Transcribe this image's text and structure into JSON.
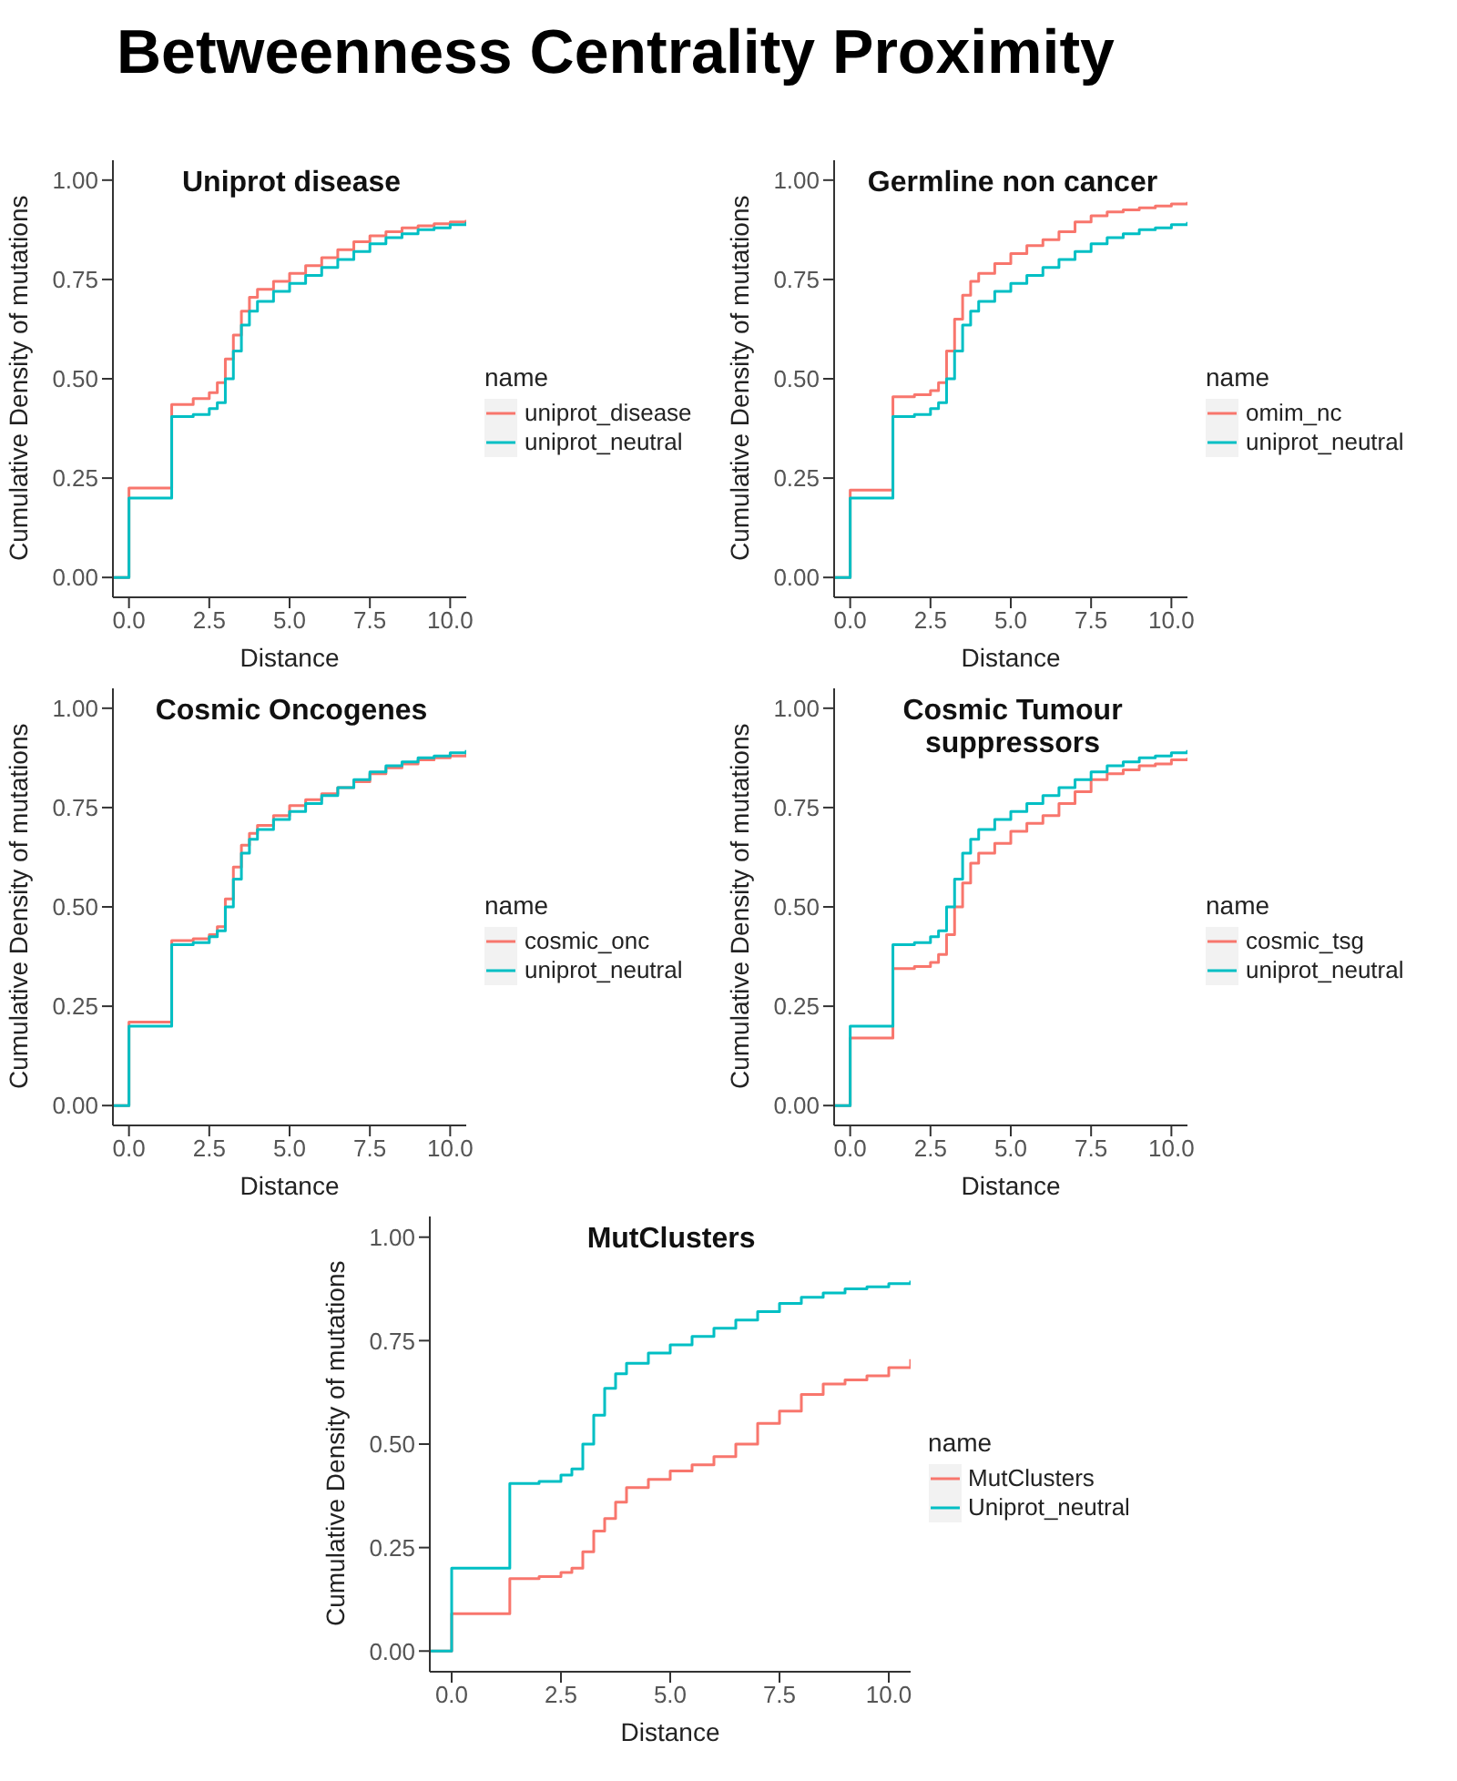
{
  "chart_data": [
    {
      "type": "other",
      "title": "Betweenness Centrality Proximity"
    },
    {
      "type": "step",
      "title": "Uniprot disease",
      "xlabel": "Distance",
      "ylabel": "Cumulative Density of mutations",
      "legend_title": "name",
      "legend": "right",
      "grid": false,
      "x": [
        -0.5,
        0,
        1.33,
        1.5,
        2,
        2.5,
        2.75,
        3,
        3.25,
        3.5,
        3.75,
        4,
        4.5,
        5,
        5.5,
        6,
        6.5,
        7,
        7.5,
        8,
        8.5,
        9,
        9.5,
        10,
        10.5
      ],
      "xlim": [
        -0.5,
        10.5
      ],
      "xticks": [
        {
          "value": 0,
          "label": "0.0"
        },
        {
          "value": 2.5,
          "label": "2.5"
        },
        {
          "value": 5,
          "label": "5.0"
        },
        {
          "value": 7.5,
          "label": "7.5"
        },
        {
          "value": 10,
          "label": "10.0"
        }
      ],
      "ylim": [
        -0.05,
        1.05
      ],
      "yticks": [
        {
          "value": 0,
          "label": "0.00"
        },
        {
          "value": 0.25,
          "label": "0.25"
        },
        {
          "value": 0.5,
          "label": "0.50"
        },
        {
          "value": 0.75,
          "label": "0.75"
        },
        {
          "value": 1,
          "label": "1.00"
        }
      ],
      "series": [
        {
          "name": "uniprot_disease",
          "color": "#f8766d",
          "values": [
            0,
            0.225,
            0.435,
            0.435,
            0.45,
            0.465,
            0.49,
            0.55,
            0.61,
            0.67,
            0.705,
            0.725,
            0.745,
            0.765,
            0.785,
            0.805,
            0.825,
            0.845,
            0.86,
            0.87,
            0.88,
            0.885,
            0.89,
            0.895,
            0.9
          ]
        },
        {
          "name": "uniprot_neutral",
          "color": "#00bfc4",
          "values": [
            0,
            0.2,
            0.405,
            0.405,
            0.41,
            0.425,
            0.44,
            0.5,
            0.57,
            0.635,
            0.67,
            0.695,
            0.72,
            0.74,
            0.76,
            0.78,
            0.8,
            0.82,
            0.84,
            0.855,
            0.865,
            0.875,
            0.88,
            0.888,
            0.895
          ]
        }
      ]
    },
    {
      "type": "step",
      "title": "Germline non cancer",
      "xlabel": "Distance",
      "ylabel": "Cumulative Density of mutations",
      "legend_title": "name",
      "legend": "right",
      "grid": false,
      "x": [
        -0.5,
        0,
        1.33,
        1.5,
        2,
        2.5,
        2.75,
        3,
        3.25,
        3.5,
        3.75,
        4,
        4.5,
        5,
        5.5,
        6,
        6.5,
        7,
        7.5,
        8,
        8.5,
        9,
        9.5,
        10,
        10.5
      ],
      "xlim": [
        -0.5,
        10.5
      ],
      "xticks": [
        {
          "value": 0,
          "label": "0.0"
        },
        {
          "value": 2.5,
          "label": "2.5"
        },
        {
          "value": 5,
          "label": "5.0"
        },
        {
          "value": 7.5,
          "label": "7.5"
        },
        {
          "value": 10,
          "label": "10.0"
        }
      ],
      "ylim": [
        -0.05,
        1.05
      ],
      "yticks": [
        {
          "value": 0,
          "label": "0.00"
        },
        {
          "value": 0.25,
          "label": "0.25"
        },
        {
          "value": 0.5,
          "label": "0.50"
        },
        {
          "value": 0.75,
          "label": "0.75"
        },
        {
          "value": 1,
          "label": "1.00"
        }
      ],
      "series": [
        {
          "name": "omim_nc",
          "color": "#f8766d",
          "values": [
            0,
            0.22,
            0.455,
            0.455,
            0.46,
            0.47,
            0.49,
            0.57,
            0.65,
            0.71,
            0.745,
            0.765,
            0.79,
            0.815,
            0.835,
            0.85,
            0.87,
            0.895,
            0.91,
            0.92,
            0.925,
            0.93,
            0.935,
            0.94,
            0.945
          ]
        },
        {
          "name": "uniprot_neutral",
          "color": "#00bfc4",
          "values": [
            0,
            0.2,
            0.405,
            0.405,
            0.41,
            0.425,
            0.44,
            0.5,
            0.57,
            0.635,
            0.67,
            0.695,
            0.72,
            0.74,
            0.76,
            0.78,
            0.8,
            0.82,
            0.84,
            0.855,
            0.865,
            0.875,
            0.88,
            0.888,
            0.895
          ]
        }
      ]
    },
    {
      "type": "step",
      "title": "Cosmic Oncogenes",
      "xlabel": "Distance",
      "ylabel": "Cumulative Density of mutations",
      "legend_title": "name",
      "legend": "right",
      "grid": false,
      "x": [
        -0.5,
        0,
        1.33,
        1.5,
        2,
        2.5,
        2.75,
        3,
        3.25,
        3.5,
        3.75,
        4,
        4.5,
        5,
        5.5,
        6,
        6.5,
        7,
        7.5,
        8,
        8.5,
        9,
        9.5,
        10,
        10.5
      ],
      "xlim": [
        -0.5,
        10.5
      ],
      "xticks": [
        {
          "value": 0,
          "label": "0.0"
        },
        {
          "value": 2.5,
          "label": "2.5"
        },
        {
          "value": 5,
          "label": "5.0"
        },
        {
          "value": 7.5,
          "label": "7.5"
        },
        {
          "value": 10,
          "label": "10.0"
        }
      ],
      "ylim": [
        -0.05,
        1.05
      ],
      "yticks": [
        {
          "value": 0,
          "label": "0.00"
        },
        {
          "value": 0.25,
          "label": "0.25"
        },
        {
          "value": 0.5,
          "label": "0.50"
        },
        {
          "value": 0.75,
          "label": "0.75"
        },
        {
          "value": 1,
          "label": "1.00"
        }
      ],
      "series": [
        {
          "name": "cosmic_onc",
          "color": "#f8766d",
          "values": [
            0,
            0.21,
            0.415,
            0.415,
            0.42,
            0.43,
            0.45,
            0.52,
            0.6,
            0.655,
            0.685,
            0.705,
            0.73,
            0.755,
            0.77,
            0.785,
            0.8,
            0.815,
            0.835,
            0.85,
            0.86,
            0.87,
            0.875,
            0.88,
            0.885
          ]
        },
        {
          "name": "uniprot_neutral",
          "color": "#00bfc4",
          "values": [
            0,
            0.2,
            0.405,
            0.405,
            0.41,
            0.425,
            0.44,
            0.5,
            0.57,
            0.635,
            0.67,
            0.695,
            0.72,
            0.74,
            0.76,
            0.78,
            0.8,
            0.82,
            0.84,
            0.855,
            0.865,
            0.875,
            0.88,
            0.888,
            0.895
          ]
        }
      ]
    },
    {
      "type": "step",
      "title": "Cosmic Tumour suppressors",
      "xlabel": "Distance",
      "ylabel": "Cumulative Density of mutations",
      "legend_title": "name",
      "legend": "right",
      "grid": false,
      "x": [
        -0.5,
        0,
        1.33,
        1.5,
        2,
        2.5,
        2.75,
        3,
        3.25,
        3.5,
        3.75,
        4,
        4.5,
        5,
        5.5,
        6,
        6.5,
        7,
        7.5,
        8,
        8.5,
        9,
        9.5,
        10,
        10.5
      ],
      "xlim": [
        -0.5,
        10.5
      ],
      "xticks": [
        {
          "value": 0,
          "label": "0.0"
        },
        {
          "value": 2.5,
          "label": "2.5"
        },
        {
          "value": 5,
          "label": "5.0"
        },
        {
          "value": 7.5,
          "label": "7.5"
        },
        {
          "value": 10,
          "label": "10.0"
        }
      ],
      "ylim": [
        -0.05,
        1.05
      ],
      "yticks": [
        {
          "value": 0,
          "label": "0.00"
        },
        {
          "value": 0.25,
          "label": "0.25"
        },
        {
          "value": 0.5,
          "label": "0.50"
        },
        {
          "value": 0.75,
          "label": "0.75"
        },
        {
          "value": 1,
          "label": "1.00"
        }
      ],
      "series": [
        {
          "name": "cosmic_tsg",
          "color": "#f8766d",
          "values": [
            0,
            0.17,
            0.345,
            0.345,
            0.35,
            0.36,
            0.38,
            0.43,
            0.5,
            0.56,
            0.61,
            0.635,
            0.66,
            0.69,
            0.71,
            0.73,
            0.76,
            0.79,
            0.82,
            0.835,
            0.845,
            0.855,
            0.86,
            0.87,
            0.875
          ]
        },
        {
          "name": "uniprot_neutral",
          "color": "#00bfc4",
          "values": [
            0,
            0.2,
            0.405,
            0.405,
            0.41,
            0.425,
            0.44,
            0.5,
            0.57,
            0.635,
            0.67,
            0.695,
            0.72,
            0.74,
            0.76,
            0.78,
            0.8,
            0.82,
            0.84,
            0.855,
            0.865,
            0.875,
            0.88,
            0.888,
            0.895
          ]
        }
      ]
    },
    {
      "type": "step",
      "title": "MutClusters",
      "xlabel": "Distance",
      "ylabel": "Cumulative Density of mutations",
      "legend_title": "name",
      "legend": "right",
      "grid": false,
      "x": [
        -0.5,
        0,
        1.33,
        1.5,
        2,
        2.5,
        2.75,
        3,
        3.25,
        3.5,
        3.75,
        4,
        4.5,
        5,
        5.5,
        6,
        6.5,
        7,
        7.5,
        8,
        8.5,
        9,
        9.5,
        10,
        10.5
      ],
      "xlim": [
        -0.5,
        10.5
      ],
      "xticks": [
        {
          "value": 0,
          "label": "0.0"
        },
        {
          "value": 2.5,
          "label": "2.5"
        },
        {
          "value": 5,
          "label": "5.0"
        },
        {
          "value": 7.5,
          "label": "7.5"
        },
        {
          "value": 10,
          "label": "10.0"
        }
      ],
      "ylim": [
        -0.05,
        1.05
      ],
      "yticks": [
        {
          "value": 0,
          "label": "0.00"
        },
        {
          "value": 0.25,
          "label": "0.25"
        },
        {
          "value": 0.5,
          "label": "0.50"
        },
        {
          "value": 0.75,
          "label": "0.75"
        },
        {
          "value": 1,
          "label": "1.00"
        }
      ],
      "series": [
        {
          "name": "MutClusters",
          "color": "#f8766d",
          "values": [
            0,
            0.09,
            0.175,
            0.175,
            0.18,
            0.19,
            0.2,
            0.24,
            0.29,
            0.32,
            0.36,
            0.395,
            0.415,
            0.435,
            0.45,
            0.47,
            0.5,
            0.55,
            0.58,
            0.62,
            0.645,
            0.655,
            0.665,
            0.685,
            0.705
          ]
        },
        {
          "name": "Uniprot_neutral",
          "color": "#00bfc4",
          "values": [
            0,
            0.2,
            0.405,
            0.405,
            0.41,
            0.425,
            0.44,
            0.5,
            0.57,
            0.635,
            0.67,
            0.695,
            0.72,
            0.74,
            0.76,
            0.78,
            0.8,
            0.82,
            0.84,
            0.855,
            0.865,
            0.875,
            0.88,
            0.888,
            0.895
          ]
        }
      ]
    }
  ]
}
